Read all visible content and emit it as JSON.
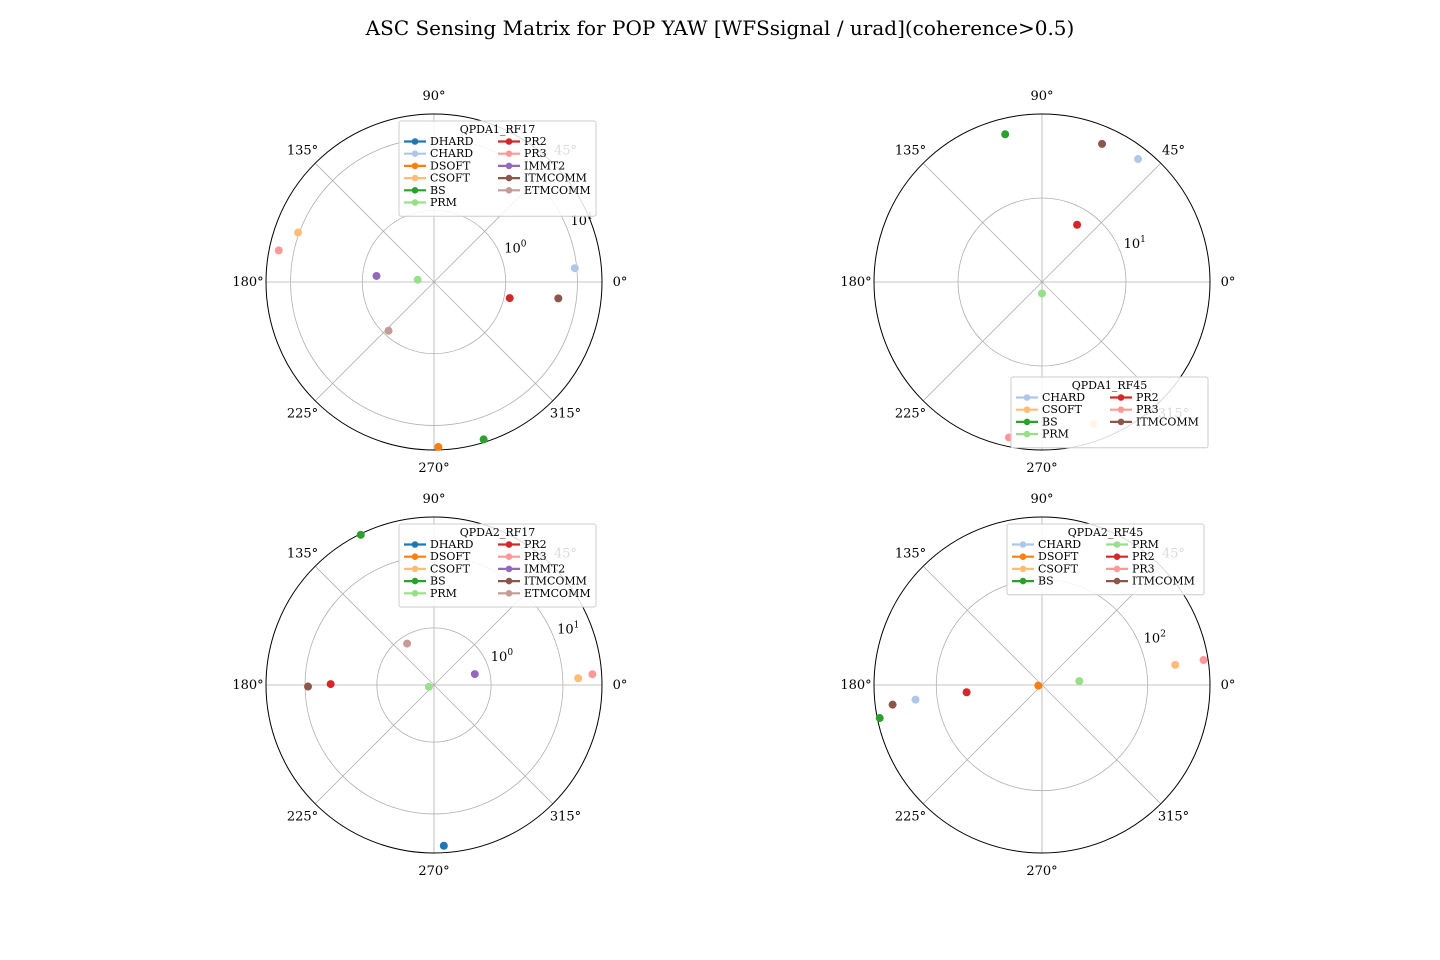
{
  "figure": {
    "title": "ASC Sensing Matrix for POP YAW [WFSsignal / urad](coherence>0.5)"
  },
  "colors": {
    "DHARD": "#1f77b4",
    "CHARD": "#aec7e8",
    "DSOFT": "#ff7f0e",
    "CSOFT": "#ffbb78",
    "BS": "#2ca02c",
    "PRM": "#98df8a",
    "PR2": "#d62728",
    "PR3": "#ff9896",
    "IMMT2": "#9467bd",
    "ITMCOMM": "#8c564b",
    "ETMCOMM": "#c49c94"
  },
  "chart_data": [
    {
      "type": "scatter",
      "projection": "polar",
      "legend_title": "QPDA1_RF17",
      "legend_placement": "upper-right",
      "angle_ticks": [
        "0°",
        "45°",
        "90°",
        "135°",
        "180°",
        "225°",
        "270°",
        "315°"
      ],
      "radial_scale": "log",
      "radial_ticks": [
        {
          "value": 1,
          "label": "10^0"
        },
        {
          "value": 10,
          "label": "10^1"
        }
      ],
      "radial_lim": [
        0.1,
        22
      ],
      "radial_label_angle": 22.5,
      "grid": true,
      "series": [
        {
          "name": "DHARD",
          "theta": [],
          "r": []
        },
        {
          "name": "CHARD",
          "theta": [
            5.6
          ],
          "r": [
            9.4
          ]
        },
        {
          "name": "DSOFT",
          "theta": [
            271.5
          ],
          "r": [
            20
          ]
        },
        {
          "name": "CSOFT",
          "theta": [
            160
          ],
          "r": [
            10.4
          ]
        },
        {
          "name": "BS",
          "theta": [
            287.5
          ],
          "r": [
            20
          ]
        },
        {
          "name": "PRM",
          "theta": [
            172
          ],
          "r": [
            0.17
          ]
        },
        {
          "name": "PR2",
          "theta": [
            348
          ],
          "r": [
            1.2
          ]
        },
        {
          "name": "PR3",
          "theta": [
            168.5
          ],
          "r": [
            16.2
          ]
        },
        {
          "name": "IMMT2",
          "theta": [
            174
          ],
          "r": [
            0.64
          ]
        },
        {
          "name": "ITMCOMM",
          "theta": [
            352.5
          ],
          "r": [
            5.6
          ]
        },
        {
          "name": "ETMCOMM",
          "theta": [
            227
          ],
          "r": [
            0.85
          ]
        }
      ]
    },
    {
      "type": "scatter",
      "projection": "polar",
      "legend_title": "QPDA1_RF45",
      "legend_placement": "lower-right",
      "angle_ticks": [
        "0°",
        "45°",
        "90°",
        "135°",
        "180°",
        "225°",
        "270°",
        "315°"
      ],
      "radial_scale": "log",
      "radial_ticks": [
        {
          "value": 10,
          "label": "10^1"
        }
      ],
      "radial_lim": [
        1,
        100
      ],
      "radial_label_angle": 22.5,
      "grid": true,
      "series": [
        {
          "name": "CHARD",
          "theta": [
            52
          ],
          "r": [
            72
          ]
        },
        {
          "name": "CSOFT",
          "theta": [
            290
          ],
          "r": [
            63
          ]
        },
        {
          "name": "BS",
          "theta": [
            104
          ],
          "r": [
            65
          ]
        },
        {
          "name": "PRM",
          "theta": [
            270
          ],
          "r": [
            1.37
          ]
        },
        {
          "name": "PR2",
          "theta": [
            58.5
          ],
          "r": [
            6.3
          ]
        },
        {
          "name": "PR3",
          "theta": [
            258
          ],
          "r": [
            78
          ]
        },
        {
          "name": "ITMCOMM",
          "theta": [
            66.5
          ],
          "r": [
            62
          ]
        }
      ]
    },
    {
      "type": "scatter",
      "projection": "polar",
      "legend_title": "QPDA2_RF17",
      "legend_placement": "upper-right",
      "angle_ticks": [
        "0°",
        "45°",
        "90°",
        "135°",
        "180°",
        "225°",
        "270°",
        "315°"
      ],
      "radial_scale": "log",
      "radial_ticks": [
        {
          "value": 1,
          "label": "10^0"
        },
        {
          "value": 10,
          "label": "10^1"
        }
      ],
      "radial_lim": [
        0.16,
        35
      ],
      "radial_label_angle": 22.5,
      "grid": true,
      "series": [
        {
          "name": "DHARD",
          "theta": [
            273.5
          ],
          "r": [
            28
          ]
        },
        {
          "name": "DSOFT",
          "theta": [],
          "r": []
        },
        {
          "name": "CSOFT",
          "theta": [
            2.7
          ],
          "r": [
            16.4
          ]
        },
        {
          "name": "BS",
          "theta": [
            116
          ],
          "r": [
            34
          ]
        },
        {
          "name": "PRM",
          "theta": [
            200
          ],
          "r": [
            0.19
          ]
        },
        {
          "name": "PR2",
          "theta": [
            179.5
          ],
          "r": [
            4.4
          ]
        },
        {
          "name": "PR3",
          "theta": [
            3.9
          ],
          "r": [
            26
          ]
        },
        {
          "name": "IMMT2",
          "theta": [
            15
          ],
          "r": [
            0.62
          ]
        },
        {
          "name": "ITMCOMM",
          "theta": [
            180.7
          ],
          "r": [
            9.1
          ]
        },
        {
          "name": "ETMCOMM",
          "theta": [
            123
          ],
          "r": [
            0.78
          ]
        }
      ]
    },
    {
      "type": "scatter",
      "projection": "polar",
      "legend_title": "QPDA2_RF45",
      "legend_placement": "upper-right",
      "angle_ticks": [
        "0°",
        "45°",
        "90°",
        "135°",
        "180°",
        "225°",
        "270°",
        "315°"
      ],
      "radial_scale": "log",
      "radial_ticks": [
        {
          "value": 100,
          "label": "10^2"
        }
      ],
      "radial_lim": [
        3,
        790
      ],
      "radial_label_angle": 22.5,
      "grid": true,
      "series": [
        {
          "name": "CHARD",
          "theta": [
            186.6
          ],
          "r": [
            205
          ]
        },
        {
          "name": "DSOFT",
          "theta": [
            190
          ],
          "r": [
            3.4
          ]
        },
        {
          "name": "CSOFT",
          "theta": [
            8.6
          ],
          "r": [
            262
          ]
        },
        {
          "name": "BS",
          "theta": [
            191.5
          ],
          "r": [
            730
          ]
        },
        {
          "name": "PRM",
          "theta": [
            6
          ],
          "r": [
            10.4
          ]
        },
        {
          "name": "PR2",
          "theta": [
            185.5
          ],
          "r": [
            37
          ]
        },
        {
          "name": "PR3",
          "theta": [
            8.8
          ],
          "r": [
            680
          ]
        },
        {
          "name": "ITMCOMM",
          "theta": [
            187.5
          ],
          "r": [
            445
          ]
        }
      ]
    }
  ]
}
